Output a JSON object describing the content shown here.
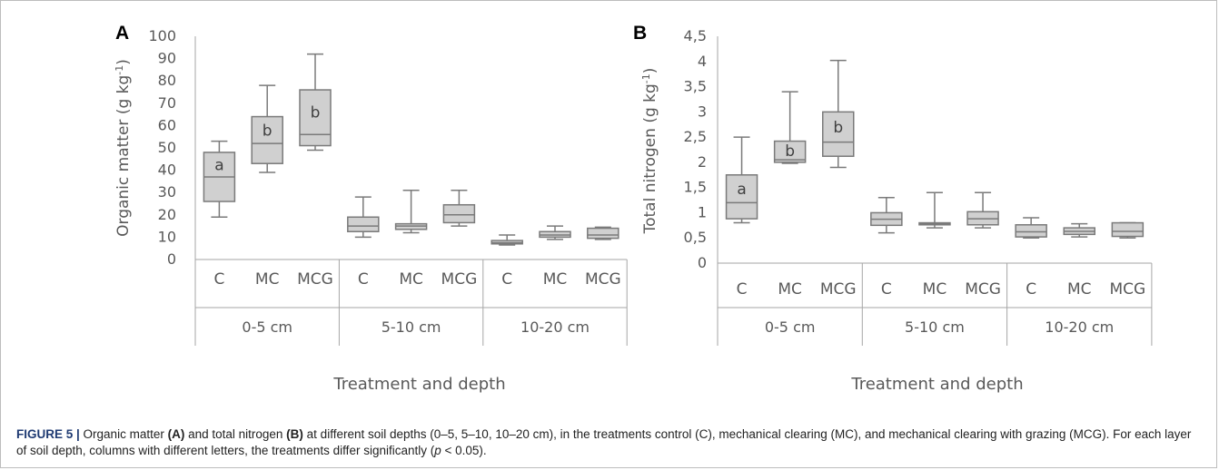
{
  "chart_data": [
    {
      "type": "box",
      "panel_label": "A",
      "ylabel": "Organic matter (g kg",
      "ylabel_sup": "-1",
      "ylabel_close": ")",
      "xlabel": "Treatment and depth",
      "ylim": [
        0,
        100
      ],
      "yticks": [
        "0",
        "10",
        "20",
        "30",
        "40",
        "50",
        "60",
        "70",
        "80",
        "90",
        "100"
      ],
      "groups": [
        "0-5 cm",
        "5-10 cm",
        "10-20 cm"
      ],
      "categories": [
        "C",
        "MC",
        "MCG",
        "C",
        "MC",
        "MCG",
        "C",
        "MC",
        "MCG"
      ],
      "boxes": [
        {
          "min": 19,
          "q1": 26,
          "median": 37,
          "q3": 48,
          "max": 53,
          "letter": "a"
        },
        {
          "min": 39,
          "q1": 43,
          "median": 52,
          "q3": 64,
          "max": 78,
          "letter": "b"
        },
        {
          "min": 49,
          "q1": 51,
          "median": 56,
          "q3": 76,
          "max": 92,
          "letter": "b"
        },
        {
          "min": 10,
          "q1": 12.5,
          "median": 15,
          "q3": 19,
          "max": 28,
          "letter": ""
        },
        {
          "min": 12,
          "q1": 13.5,
          "median": 15,
          "q3": 16,
          "max": 31,
          "letter": ""
        },
        {
          "min": 15,
          "q1": 16.5,
          "median": 20,
          "q3": 24.5,
          "max": 31,
          "letter": ""
        },
        {
          "min": 6.5,
          "q1": 7,
          "median": 7.5,
          "q3": 8.5,
          "max": 11,
          "letter": ""
        },
        {
          "min": 9,
          "q1": 10,
          "median": 11,
          "q3": 12.5,
          "max": 15,
          "letter": ""
        },
        {
          "min": 9,
          "q1": 9.5,
          "median": 11,
          "q3": 14,
          "max": 14.5,
          "letter": ""
        }
      ]
    },
    {
      "type": "box",
      "panel_label": "B",
      "ylabel": "Total nitrogen (g kg",
      "ylabel_sup": "-1",
      "ylabel_close": ")",
      "xlabel": "Treatment and depth",
      "ylim": [
        0,
        4.5
      ],
      "yticks": [
        "0",
        "0,5",
        "1",
        "1,5",
        "2",
        "2,5",
        "3",
        "3,5",
        "4",
        "4,5"
      ],
      "groups": [
        "0-5 cm",
        "5-10 cm",
        "10-20 cm"
      ],
      "categories": [
        "C",
        "MC",
        "MCG",
        "C",
        "MC",
        "MCG",
        "C",
        "MC",
        "MCG"
      ],
      "boxes": [
        {
          "min": 0.8,
          "q1": 0.88,
          "median": 1.2,
          "q3": 1.75,
          "max": 2.5,
          "letter": "a"
        },
        {
          "min": 1.98,
          "q1": 2.0,
          "median": 2.05,
          "q3": 2.42,
          "max": 3.4,
          "letter": "b"
        },
        {
          "min": 1.9,
          "q1": 2.12,
          "median": 2.4,
          "q3": 3.0,
          "max": 4.02,
          "letter": "b"
        },
        {
          "min": 0.6,
          "q1": 0.75,
          "median": 0.87,
          "q3": 1.0,
          "max": 1.3,
          "letter": ""
        },
        {
          "min": 0.7,
          "q1": 0.76,
          "median": 0.78,
          "q3": 0.8,
          "max": 1.4,
          "letter": ""
        },
        {
          "min": 0.7,
          "q1": 0.76,
          "median": 0.88,
          "q3": 1.02,
          "max": 1.4,
          "letter": ""
        },
        {
          "min": 0.5,
          "q1": 0.52,
          "median": 0.62,
          "q3": 0.76,
          "max": 0.9,
          "letter": ""
        },
        {
          "min": 0.52,
          "q1": 0.57,
          "median": 0.63,
          "q3": 0.7,
          "max": 0.78,
          "letter": ""
        },
        {
          "min": 0.5,
          "q1": 0.53,
          "median": 0.63,
          "q3": 0.8,
          "max": 0.8,
          "letter": ""
        }
      ]
    }
  ],
  "colors": {
    "box_fill": "#d0d0d0",
    "stroke": "#7a7a7a",
    "axis": "#a6a6a6",
    "text": "#595959"
  },
  "caption": {
    "label": "FIGURE 5 |",
    "parts": [
      {
        "t": " Organic matter ",
        "b": false
      },
      {
        "t": "(A)",
        "b": true
      },
      {
        "t": " and total nitrogen ",
        "b": false
      },
      {
        "t": "(B)",
        "b": true
      },
      {
        "t": " at different soil depths (0–5, 5–10, 10–20 cm), in the treatments control (C), mechanical clearing (MC), and mechanical clearing with grazing (MCG). For each layer of soil depth, columns with different letters, the treatments differ significantly (",
        "b": false
      },
      {
        "t": "p",
        "b": false,
        "i": true
      },
      {
        "t": " < 0.05).",
        "b": false
      }
    ]
  }
}
